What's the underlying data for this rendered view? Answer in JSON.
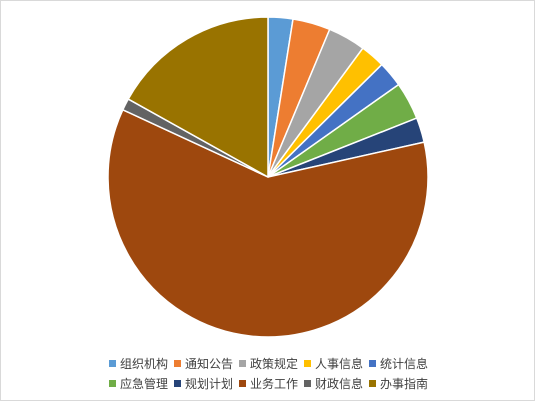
{
  "chart_data": {
    "type": "pie",
    "title": "",
    "start_angle_deg": 0,
    "direction": "clockwise",
    "legend_position": "bottom",
    "categories": [
      "组织机构",
      "通知公告",
      "政策规定",
      "人事信息",
      "统计信息",
      "应急管理",
      "规划计划",
      "业务工作",
      "财政信息",
      "办事指南"
    ],
    "values": [
      2.5,
      3.8,
      3.8,
      2.5,
      2.6,
      3.8,
      2.5,
      60.4,
      1.2,
      16.9
    ],
    "colors": [
      "#5B9BD5",
      "#ED7D31",
      "#A5A5A5",
      "#FFC000",
      "#4472C4",
      "#70AD47",
      "#264478",
      "#9E480E",
      "#636363",
      "#997300"
    ],
    "legend_rows": [
      [
        0,
        1,
        2,
        3,
        4
      ],
      [
        5,
        6,
        7,
        8,
        9
      ]
    ]
  }
}
